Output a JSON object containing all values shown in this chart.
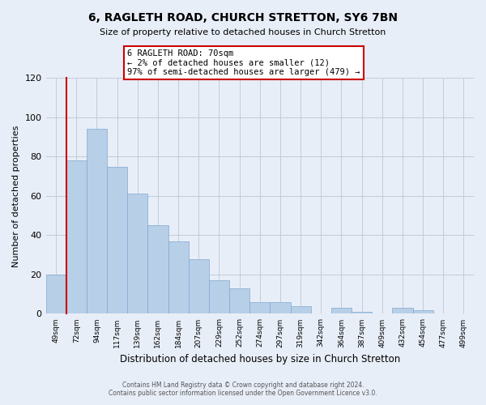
{
  "title": "6, RAGLETH ROAD, CHURCH STRETTON, SY6 7BN",
  "subtitle": "Size of property relative to detached houses in Church Stretton",
  "xlabel": "Distribution of detached houses by size in Church Stretton",
  "ylabel": "Number of detached properties",
  "bin_labels": [
    "49sqm",
    "72sqm",
    "94sqm",
    "117sqm",
    "139sqm",
    "162sqm",
    "184sqm",
    "207sqm",
    "229sqm",
    "252sqm",
    "274sqm",
    "297sqm",
    "319sqm",
    "342sqm",
    "364sqm",
    "387sqm",
    "409sqm",
    "432sqm",
    "454sqm",
    "477sqm",
    "499sqm"
  ],
  "bar_heights": [
    20,
    78,
    94,
    75,
    61,
    45,
    37,
    28,
    17,
    13,
    6,
    6,
    4,
    0,
    3,
    1,
    0,
    3,
    2,
    0,
    0
  ],
  "bar_color": "#b8cfe8",
  "bar_edge_color": "#7fa8d0",
  "highlight_color": "#cc0000",
  "highlight_bar_index": 1,
  "annotation_title": "6 RAGLETH ROAD: 70sqm",
  "annotation_line1": "← 2% of detached houses are smaller (12)",
  "annotation_line2": "97% of semi-detached houses are larger (479) →",
  "ylim": [
    0,
    120
  ],
  "yticks": [
    0,
    20,
    40,
    60,
    80,
    100,
    120
  ],
  "footer_line1": "Contains HM Land Registry data © Crown copyright and database right 2024.",
  "footer_line2": "Contains public sector information licensed under the Open Government Licence v3.0.",
  "bg_color": "#e8eef8",
  "plot_bg_color": "#e8eef8",
  "grid_color": "#c0ccd8"
}
